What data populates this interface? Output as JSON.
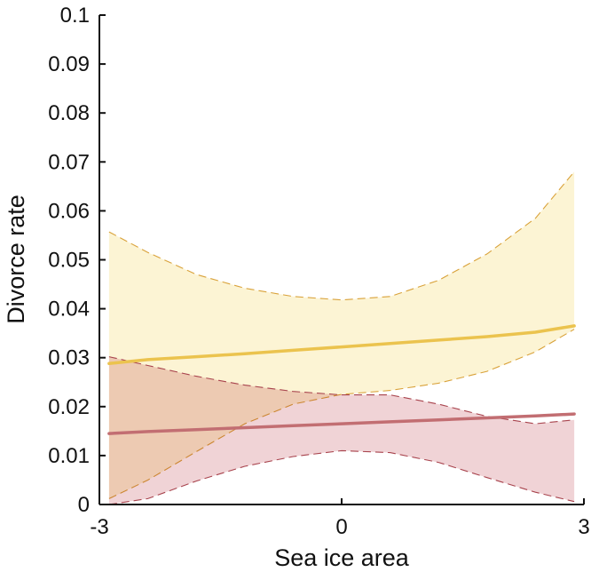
{
  "chart_data": {
    "type": "line",
    "title": "",
    "xlabel": "Sea ice area",
    "ylabel": "Divorce rate",
    "xlim": [
      -3,
      3
    ],
    "ylim": [
      0,
      0.1
    ],
    "x_ticks": [
      -3,
      0,
      3
    ],
    "x_tick_labels": [
      "-3",
      "0",
      "3"
    ],
    "y_ticks": [
      0,
      0.01,
      0.02,
      0.03,
      0.04,
      0.05,
      0.06,
      0.07,
      0.08,
      0.09,
      0.1
    ],
    "y_tick_labels": [
      "0",
      "0.01",
      "0.02",
      "0.03",
      "0.04",
      "0.05",
      "0.06",
      "0.07",
      "0.08",
      "0.09",
      "0.1"
    ],
    "grid": false,
    "legend": "none",
    "series": [
      {
        "color": "#EBC34E",
        "band_color": "#FCF4D4",
        "band_edge_color": "#D9A23A",
        "x": [
          -2.88,
          -2.4,
          -1.8,
          -1.2,
          -0.6,
          0,
          0.6,
          1.2,
          1.8,
          2.4,
          2.88
        ],
        "values": [
          0.0288,
          0.0296,
          0.0302,
          0.0308,
          0.0315,
          0.0322,
          0.0329,
          0.0336,
          0.0343,
          0.0352,
          0.0365
        ],
        "upper": [
          0.0557,
          0.0515,
          0.047,
          0.0442,
          0.0425,
          0.0418,
          0.0425,
          0.0458,
          0.0512,
          0.0585,
          0.068
        ],
        "lower": [
          0.0012,
          0.005,
          0.0108,
          0.0165,
          0.0205,
          0.0225,
          0.0233,
          0.0248,
          0.0272,
          0.0312,
          0.0358
        ]
      },
      {
        "color": "#C26E72",
        "band_color": "#F0D3D6",
        "band_edge_color": "#A8434D",
        "x": [
          -2.88,
          -2.4,
          -1.8,
          -1.2,
          -0.6,
          0,
          0.6,
          1.2,
          1.8,
          2.4,
          2.88
        ],
        "values": [
          0.0145,
          0.0149,
          0.0153,
          0.0157,
          0.0161,
          0.0165,
          0.0169,
          0.0173,
          0.0177,
          0.0181,
          0.0185
        ],
        "upper": [
          0.0302,
          0.0284,
          0.0262,
          0.0244,
          0.0231,
          0.0224,
          0.0224,
          0.0205,
          0.018,
          0.0165,
          0.0173
        ],
        "lower": [
          0,
          0.0012,
          0.0048,
          0.0078,
          0.0098,
          0.011,
          0.0106,
          0.0086,
          0.0055,
          0.0025,
          0.0006
        ]
      }
    ]
  }
}
